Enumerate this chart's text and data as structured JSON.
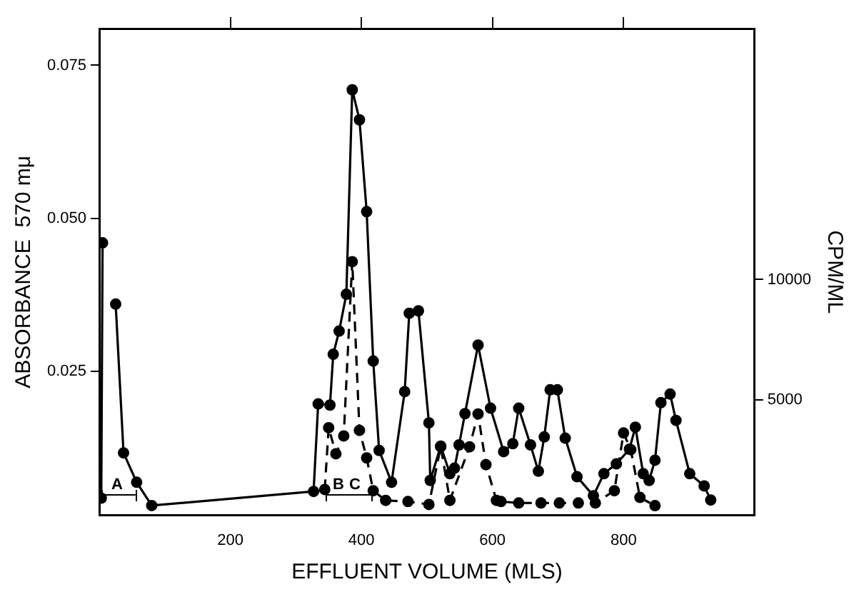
{
  "chart_data": {
    "type": "line",
    "xlabel": "EFFLUENT VOLUME (MLS)",
    "ylabel": "ABSORBANCE  570 mμ",
    "y2label": "CPM/ML",
    "xlim": [
      0,
      1000
    ],
    "xticks": [
      200,
      400,
      600,
      800
    ],
    "ylim": [
      0.0015,
      0.081
    ],
    "yticks": [
      {
        "value": 0.025,
        "label": "0.025"
      },
      {
        "value": 0.05,
        "label": "0.050"
      },
      {
        "value": 0.075,
        "label": "0.075"
      }
    ],
    "y2lim": [
      230,
      20400
    ],
    "y2ticks": [
      5000,
      10000
    ],
    "grid": false,
    "legend": false,
    "marker": "circle",
    "annotations": [
      "A",
      "B",
      "C"
    ],
    "series": [
      {
        "color": "#000000",
        "line_style": "solid",
        "x": [
          3,
          5,
          10,
          17,
          25,
          37,
          57,
          80,
          327,
          334,
          352,
          357,
          366,
          377,
          386,
          397,
          408,
          418,
          427,
          446,
          466,
          473,
          487,
          503,
          505,
          521,
          535,
          542,
          549,
          558,
          578,
          597,
          617,
          631,
          640,
          658,
          670,
          679,
          688,
          699,
          711,
          729,
          754,
          770,
          789,
          809,
          818,
          830,
          839,
          848,
          857,
          871,
          880,
          901,
          923,
          933
        ],
        "values": [
          0.0043,
          0.046,
          null,
          null,
          0.036,
          0.0117,
          0.0069,
          0.0031,
          0.0054,
          0.0197,
          0.0195,
          0.0278,
          0.0316,
          0.0376,
          0.071,
          0.0661,
          0.0511,
          0.0267,
          0.0121,
          0.0069,
          0.0217,
          0.0345,
          0.0349,
          0.0166,
          0.0072,
          0.0128,
          0.0083,
          0.0092,
          0.013,
          0.0181,
          0.0293,
          0.019,
          0.0119,
          0.0132,
          0.019,
          0.013,
          0.0087,
          0.0143,
          0.022,
          0.022,
          0.0141,
          0.0078,
          0.0047,
          0.0083,
          0.0099,
          0.0123,
          0.0159,
          0.0083,
          0.0072,
          0.0105,
          0.0199,
          0.0213,
          0.017,
          0.0083,
          0.0063,
          0.004
        ]
      },
      {
        "color": "#000000",
        "line_style": "dashed",
        "axis": "y2",
        "x": [
          344,
          350,
          361,
          373,
          386,
          397,
          408,
          418,
          437,
          471,
          503,
          521,
          535,
          565,
          578,
          590,
          606,
          613,
          640,
          674,
          702,
          731,
          757,
          786,
          800,
          811,
          825,
          848
        ],
        "values": [
          1300,
          3860,
          2780,
          3520,
          10740,
          3750,
          2610,
          1250,
          850,
          800,
          680,
          3070,
          850,
          3070,
          4430,
          2330,
          850,
          800,
          740,
          740,
          740,
          740,
          740,
          1250,
          3640,
          2950,
          970,
          630
        ]
      }
    ]
  }
}
